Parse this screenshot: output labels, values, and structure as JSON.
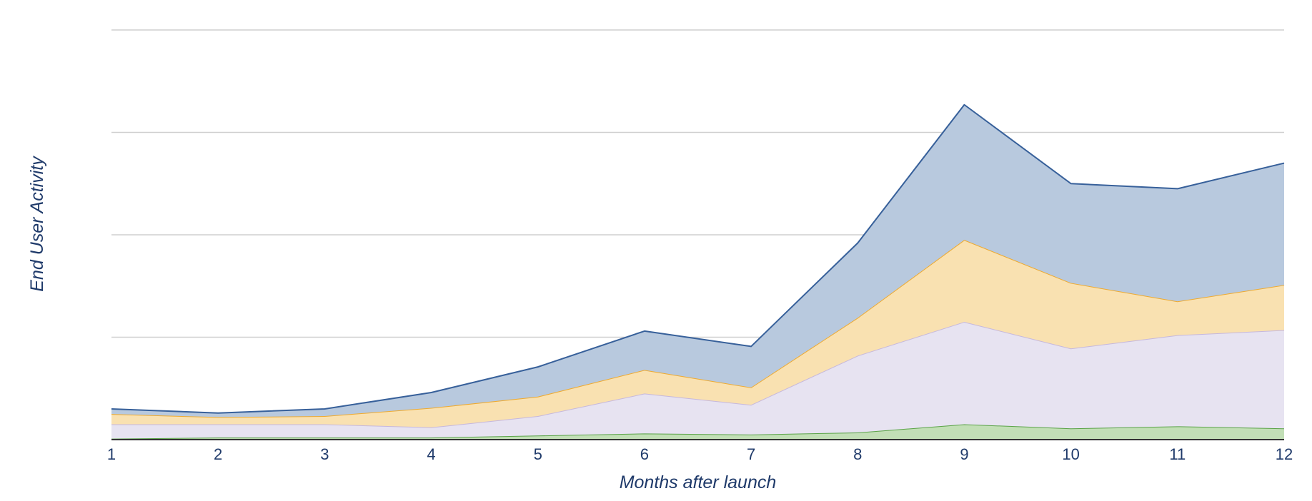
{
  "chart_data": {
    "type": "area",
    "stacked": true,
    "x": [
      1,
      2,
      3,
      4,
      5,
      6,
      7,
      8,
      9,
      10,
      11,
      12
    ],
    "xlabel": "Months after launch",
    "ylabel": "End User Activity",
    "ylim": [
      0,
      4
    ],
    "yticks_shown": false,
    "grid": true,
    "legend": "none",
    "series": [
      {
        "color": "#5aa347",
        "fill": "#c2dfb6",
        "values": [
          0.01,
          0.02,
          0.02,
          0.02,
          0.04,
          0.06,
          0.05,
          0.07,
          0.15,
          0.11,
          0.13,
          0.11
        ]
      },
      {
        "color": "#c6b8dc",
        "fill": "#e7e3f1",
        "values": [
          0.14,
          0.13,
          0.13,
          0.1,
          0.19,
          0.39,
          0.29,
          0.75,
          1.0,
          0.78,
          0.89,
          0.96
        ]
      },
      {
        "color": "#eeaa30",
        "fill": "#f9e1b1",
        "values": [
          0.1,
          0.07,
          0.08,
          0.19,
          0.19,
          0.23,
          0.17,
          0.37,
          0.8,
          0.64,
          0.33,
          0.44
        ]
      },
      {
        "color": "#37609a",
        "fill": "#b8c9de",
        "values": [
          0.05,
          0.04,
          0.07,
          0.15,
          0.29,
          0.38,
          0.4,
          0.73,
          1.32,
          0.97,
          1.1,
          1.19
        ]
      }
    ]
  }
}
